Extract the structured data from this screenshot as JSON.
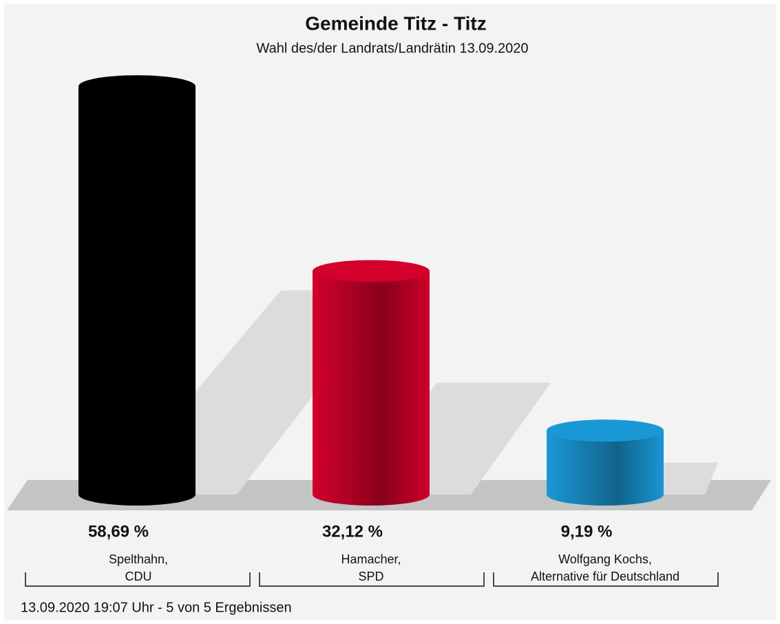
{
  "chart_data": {
    "type": "bar",
    "title": "Gemeinde Titz - Titz",
    "subtitle": "Wahl des/der Landrats/Landrätin 13.09.2020",
    "categories": [
      [
        "Spelthahn,",
        "CDU"
      ],
      [
        "Hamacher,",
        "SPD"
      ],
      [
        "Wolfgang Kochs,",
        "Alternative für Deutschland"
      ]
    ],
    "values": [
      58.69,
      32.12,
      9.19
    ],
    "value_labels": [
      "58,69 %",
      "32,12 %",
      "9,19 %"
    ],
    "colors": [
      "#000000",
      "#d2002b",
      "#1a98d6"
    ],
    "footer": "13.09.2020 19:07 Uhr - 5 von 5 Ergebnissen"
  }
}
